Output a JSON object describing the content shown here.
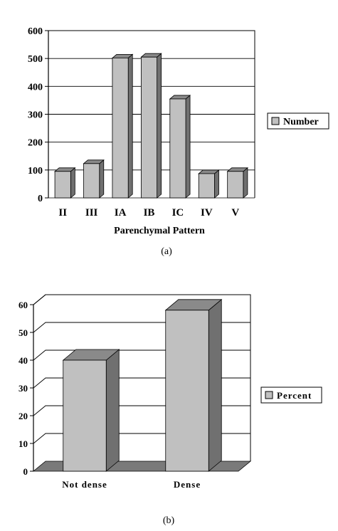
{
  "chart_data": [
    {
      "type": "bar",
      "three_d": true,
      "categories": [
        "II",
        "III",
        "IA",
        "IB",
        "IC",
        "IV",
        "V"
      ],
      "series": [
        {
          "name": "Number",
          "values": [
            95,
            123,
            502,
            505,
            355,
            87,
            95
          ]
        }
      ],
      "yticks": [
        "0",
        "100",
        "200",
        "300",
        "400",
        "500",
        "600"
      ],
      "ylim": [
        0,
        600
      ],
      "xlabel": "Parenchymal Pattern",
      "ylabel": "",
      "grid": true,
      "legend": "right",
      "caption": "(a)",
      "colors": {
        "bar_face": "#c0c0c0",
        "bar_side": "#707070",
        "bar_top": "#8a8a8a",
        "grid": "#000000"
      }
    },
    {
      "type": "bar",
      "three_d": true,
      "categories": [
        "Not dense",
        "Dense"
      ],
      "series": [
        {
          "name": "Percent",
          "values": [
            40,
            58
          ]
        }
      ],
      "yticks": [
        "0",
        "10",
        "20",
        "30",
        "40",
        "50",
        "60"
      ],
      "ylim": [
        0,
        60
      ],
      "xlabel": "",
      "ylabel": "",
      "grid": true,
      "legend": "right",
      "caption": "(b)",
      "colors": {
        "bar_face": "#c0c0c0",
        "bar_side": "#707070",
        "bar_top": "#8a8a8a",
        "grid": "#000000"
      }
    }
  ]
}
